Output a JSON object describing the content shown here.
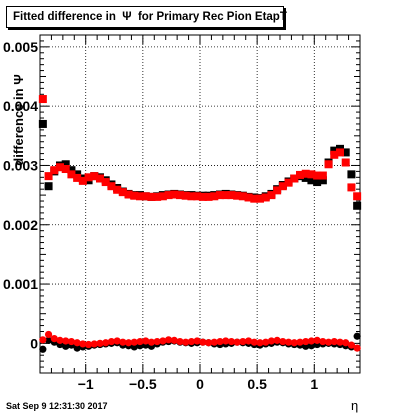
{
  "title": "Fitted difference in  Ψ  for Primary Rec Pion EtapT",
  "timestamp": "Sat Sep  9 12:31:30 2017",
  "xlabel": "η",
  "ylabel": "difference in Ψ",
  "colors": {
    "series_black": "#000000",
    "series_red": "#ff0000",
    "grid": "#000000"
  },
  "chart_data": {
    "type": "scatter",
    "title": "Fitted difference in  Ψ  for Primary Rec Pion EtapT",
    "xlabel": "η",
    "ylabel": "difference in Ψ",
    "xlim": [
      -1.4,
      1.4
    ],
    "ylim": [
      -0.0005,
      0.0052
    ],
    "xticks": [
      -1,
      -0.5,
      0,
      0.5,
      1
    ],
    "xtick_labels": [
      "−1",
      "−0.5",
      "0",
      "0.5",
      "1"
    ],
    "yticks": [
      0,
      0.001,
      0.002,
      0.003,
      0.004,
      0.005
    ],
    "ytick_labels": [
      "0",
      "0.001",
      "0.002",
      "0.003",
      "0.004",
      "0.005"
    ],
    "grid": true,
    "series": [
      {
        "marker": "square",
        "color": "#000000",
        "x": [
          -1.375,
          -1.325,
          -1.275,
          -1.225,
          -1.175,
          -1.125,
          -1.075,
          -1.025,
          -0.975,
          -0.925,
          -0.875,
          -0.825,
          -0.775,
          -0.725,
          -0.675,
          -0.625,
          -0.575,
          -0.525,
          -0.475,
          -0.425,
          -0.375,
          -0.325,
          -0.275,
          -0.225,
          -0.175,
          -0.125,
          -0.075,
          -0.025,
          0.025,
          0.075,
          0.125,
          0.175,
          0.225,
          0.275,
          0.325,
          0.375,
          0.425,
          0.475,
          0.525,
          0.575,
          0.625,
          0.675,
          0.725,
          0.775,
          0.825,
          0.875,
          0.925,
          0.975,
          1.025,
          1.075,
          1.125,
          1.175,
          1.225,
          1.275,
          1.325,
          1.375
        ],
        "y": [
          0.0037,
          0.00265,
          0.0029,
          0.003,
          0.00302,
          0.00292,
          0.00285,
          0.00278,
          0.00275,
          0.00282,
          0.0028,
          0.00275,
          0.00268,
          0.00262,
          0.00256,
          0.00252,
          0.0025,
          0.0025,
          0.00248,
          0.00247,
          0.00248,
          0.0025,
          0.00251,
          0.00252,
          0.00251,
          0.0025,
          0.0025,
          0.00249,
          0.00249,
          0.00249,
          0.0025,
          0.00251,
          0.00252,
          0.00251,
          0.0025,
          0.00249,
          0.00247,
          0.00246,
          0.00245,
          0.00248,
          0.00252,
          0.0026,
          0.00267,
          0.00273,
          0.00278,
          0.00282,
          0.00279,
          0.00275,
          0.00272,
          0.00275,
          0.00305,
          0.00325,
          0.00328,
          0.00322,
          0.00285,
          0.00232
        ]
      },
      {
        "marker": "square",
        "color": "#ff0000",
        "x": [
          -1.375,
          -1.325,
          -1.275,
          -1.225,
          -1.175,
          -1.125,
          -1.075,
          -1.025,
          -0.975,
          -0.925,
          -0.875,
          -0.825,
          -0.775,
          -0.725,
          -0.675,
          -0.625,
          -0.575,
          -0.525,
          -0.475,
          -0.425,
          -0.375,
          -0.325,
          -0.275,
          -0.225,
          -0.175,
          -0.125,
          -0.075,
          -0.025,
          0.025,
          0.075,
          0.125,
          0.175,
          0.225,
          0.275,
          0.325,
          0.375,
          0.425,
          0.475,
          0.525,
          0.575,
          0.625,
          0.675,
          0.725,
          0.775,
          0.825,
          0.875,
          0.925,
          0.975,
          1.025,
          1.075,
          1.125,
          1.175,
          1.225,
          1.275,
          1.325,
          1.375
        ],
        "y": [
          0.00412,
          0.00282,
          0.00292,
          0.00297,
          0.00294,
          0.00285,
          0.00279,
          0.00274,
          0.0028,
          0.00282,
          0.00278,
          0.00272,
          0.00265,
          0.00259,
          0.00255,
          0.00251,
          0.00249,
          0.00248,
          0.00248,
          0.00247,
          0.00247,
          0.00248,
          0.0025,
          0.00251,
          0.0025,
          0.00249,
          0.00248,
          0.00248,
          0.00247,
          0.00247,
          0.00248,
          0.0025,
          0.0025,
          0.0025,
          0.00249,
          0.00248,
          0.00246,
          0.00244,
          0.00244,
          0.00246,
          0.0025,
          0.00258,
          0.00265,
          0.00271,
          0.00278,
          0.00284,
          0.00286,
          0.00285,
          0.00283,
          0.00283,
          0.00302,
          0.00318,
          0.00322,
          0.00305,
          0.00263,
          0.00248
        ]
      },
      {
        "marker": "circle",
        "color": "#000000",
        "x": [
          -1.375,
          -1.325,
          -1.275,
          -1.225,
          -1.175,
          -1.125,
          -1.075,
          -1.025,
          -0.975,
          -0.925,
          -0.875,
          -0.825,
          -0.775,
          -0.725,
          -0.675,
          -0.625,
          -0.575,
          -0.525,
          -0.475,
          -0.425,
          -0.375,
          -0.325,
          -0.275,
          -0.225,
          -0.175,
          -0.125,
          -0.075,
          -0.025,
          0.025,
          0.075,
          0.125,
          0.175,
          0.225,
          0.275,
          0.325,
          0.375,
          0.425,
          0.475,
          0.525,
          0.575,
          0.625,
          0.675,
          0.725,
          0.775,
          0.825,
          0.875,
          0.925,
          0.975,
          1.025,
          1.075,
          1.125,
          1.175,
          1.225,
          1.275,
          1.325,
          1.375
        ],
        "y": [
          -0.0001,
          5e-05,
          2e-05,
          -2e-05,
          -5e-05,
          -3e-05,
          -8e-05,
          -6e-05,
          -5e-05,
          -3e-05,
          -2e-05,
          -1e-05,
          0,
          1e-05,
          -3e-05,
          -4e-05,
          -6e-05,
          -4e-05,
          -3e-05,
          -5e-05,
          -1e-05,
          2e-05,
          3e-05,
          4e-05,
          2e-05,
          1e-05,
          0,
          1e-05,
          2e-05,
          1e-05,
          -1e-05,
          -2e-05,
          -1e-05,
          0,
          2e-05,
          1e-05,
          0,
          -2e-05,
          -3e-05,
          -1e-05,
          0,
          2e-05,
          1e-05,
          -1e-05,
          -2e-05,
          -3e-05,
          -5e-05,
          -4e-05,
          -2e-05,
          -1e-05,
          0,
          -1e-05,
          -2e-05,
          -4e-05,
          -6e-05,
          0.00012
        ]
      },
      {
        "marker": "circle",
        "color": "#ff0000",
        "x": [
          -1.375,
          -1.325,
          -1.275,
          -1.225,
          -1.175,
          -1.125,
          -1.075,
          -1.025,
          -0.975,
          -0.925,
          -0.875,
          -0.825,
          -0.775,
          -0.725,
          -0.675,
          -0.625,
          -0.575,
          -0.525,
          -0.475,
          -0.425,
          -0.375,
          -0.325,
          -0.275,
          -0.225,
          -0.175,
          -0.125,
          -0.075,
          -0.025,
          0.025,
          0.075,
          0.125,
          0.175,
          0.225,
          0.275,
          0.325,
          0.375,
          0.425,
          0.475,
          0.525,
          0.575,
          0.625,
          0.675,
          0.725,
          0.775,
          0.825,
          0.875,
          0.925,
          0.975,
          1.025,
          1.075,
          1.125,
          1.175,
          1.225,
          1.275,
          1.325,
          1.375
        ],
        "y": [
          6e-05,
          0.00015,
          8e-05,
          5e-05,
          4e-05,
          3e-05,
          1e-05,
          -1e-05,
          -2e-05,
          -1e-05,
          0,
          1e-05,
          3e-05,
          4e-05,
          2e-05,
          1e-05,
          2e-05,
          3e-05,
          4e-05,
          2e-05,
          3e-05,
          4e-05,
          6e-05,
          5e-05,
          3e-05,
          2e-05,
          3e-05,
          4e-05,
          2e-05,
          1e-05,
          2e-05,
          3e-05,
          4e-05,
          3e-05,
          2e-05,
          3e-05,
          4e-05,
          2e-05,
          1e-05,
          2e-05,
          4e-05,
          5e-05,
          3e-05,
          2e-05,
          1e-05,
          2e-05,
          3e-05,
          4e-05,
          5e-05,
          3e-05,
          2e-05,
          3e-05,
          2e-05,
          1e-05,
          -3e-05,
          -8e-05
        ]
      }
    ]
  }
}
